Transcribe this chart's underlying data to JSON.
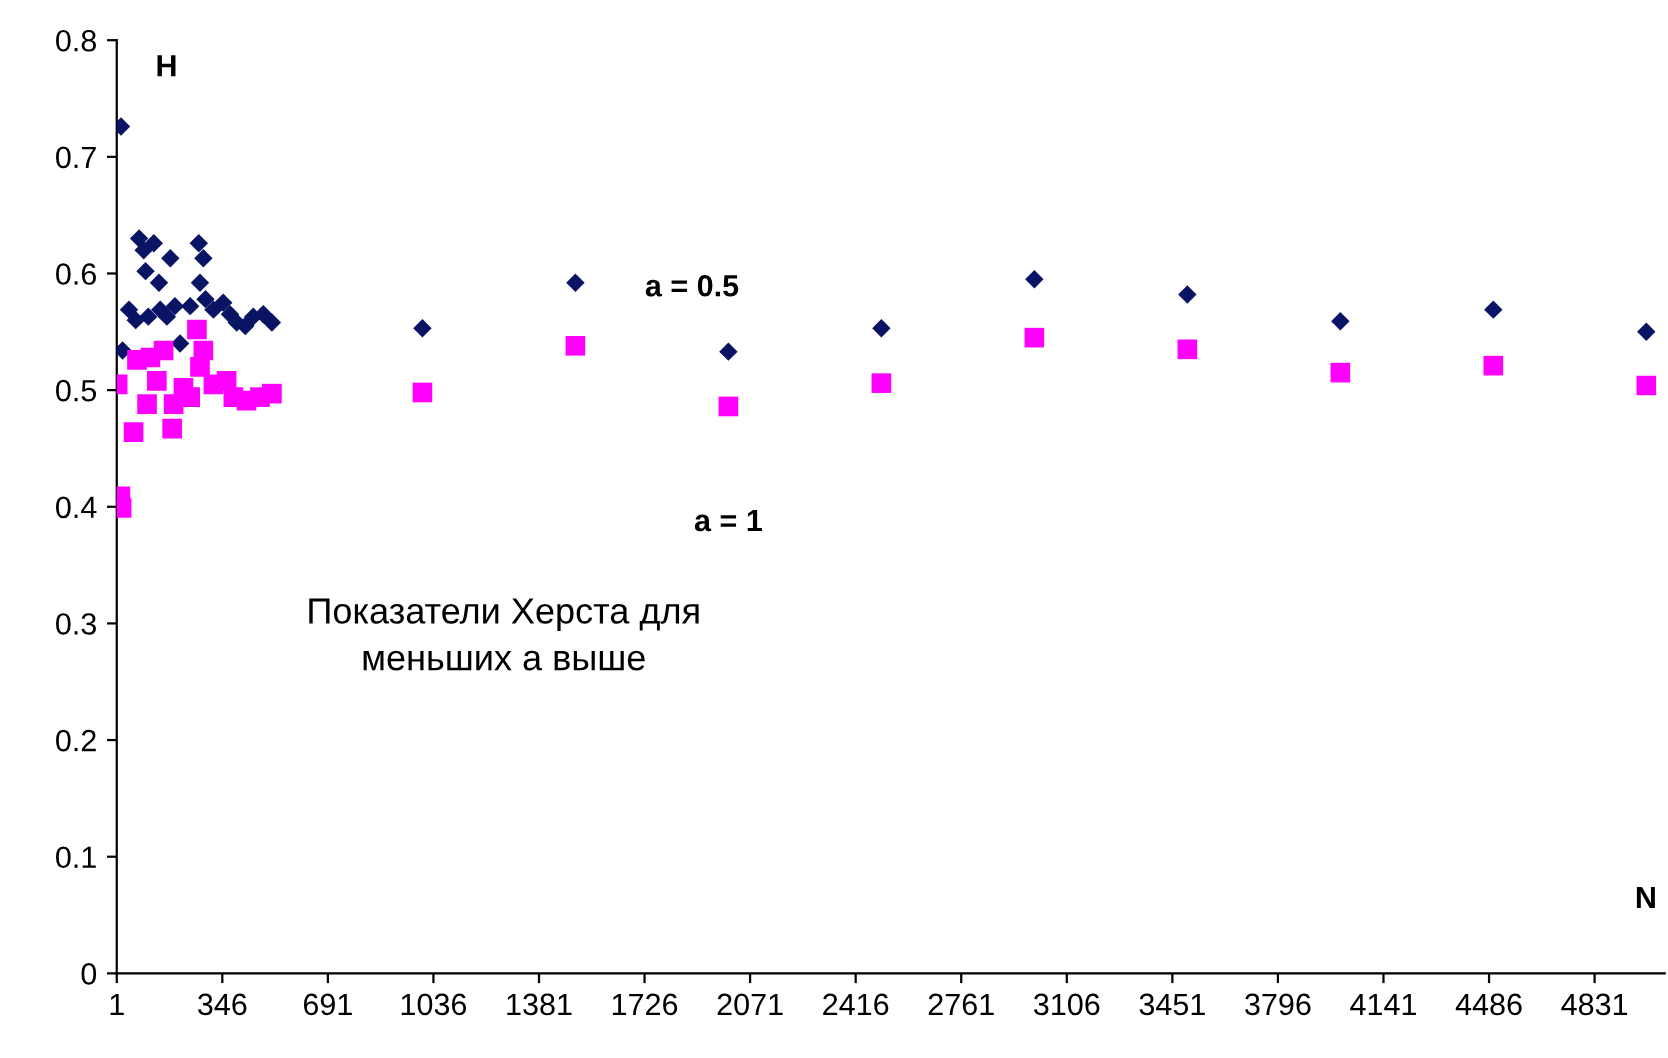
{
  "chart_data": {
    "type": "scatter",
    "xlabel": "N",
    "ylabel": "H",
    "annotations": [
      "Показатели Херста для\nменьших a выше"
    ],
    "xlim": [
      1,
      5060
    ],
    "xticks": [
      1,
      346,
      691,
      1036,
      1381,
      1726,
      2071,
      2416,
      2761,
      3106,
      3451,
      3796,
      4141,
      4486,
      4831
    ],
    "ylim": [
      0,
      0.8
    ],
    "yticks": [
      0,
      0.1,
      0.2,
      0.3,
      0.4,
      0.5,
      0.6,
      0.7,
      0.8
    ],
    "grid": false,
    "legend": false,
    "series": [
      {
        "name": "a = 0.5",
        "color": "#0a1464",
        "marker": "diamond",
        "x": [
          1000,
          1500,
          2000,
          2500,
          3000,
          3500,
          4000,
          4500,
          5000,
          15,
          20,
          41,
          74,
          89,
          95,
          122,
          143,
          139,
          104,
          176,
          191,
          208,
          241,
          269,
          284,
          273,
          291,
          317,
          349,
          371,
          393,
          421,
          447,
          480,
          508,
          63,
          165
        ],
        "values": [
          0.553,
          0.592,
          0.533,
          0.553,
          0.595,
          0.582,
          0.559,
          0.569,
          0.55,
          0.726,
          0.534,
          0.569,
          0.63,
          0.62,
          0.602,
          0.626,
          0.569,
          0.592,
          0.563,
          0.613,
          0.572,
          0.54,
          0.572,
          0.626,
          0.613,
          0.592,
          0.578,
          0.569,
          0.575,
          0.565,
          0.558,
          0.555,
          0.563,
          0.565,
          0.558,
          0.56,
          0.563
        ]
      },
      {
        "name": "a = 1",
        "color": "#ff00ff",
        "marker": "square",
        "x": [
          1000,
          1500,
          2000,
          2500,
          3000,
          3500,
          4000,
          4500,
          5000,
          4,
          13,
          17,
          56,
          67,
          111,
          154,
          100,
          187,
          182,
          219,
          263,
          284,
          317,
          360,
          382,
          425,
          469,
          508,
          241,
          132,
          273
        ],
        "values": [
          0.498,
          0.538,
          0.486,
          0.506,
          0.545,
          0.535,
          0.515,
          0.521,
          0.504,
          0.505,
          0.409,
          0.399,
          0.464,
          0.526,
          0.528,
          0.534,
          0.488,
          0.488,
          0.467,
          0.502,
          0.552,
          0.534,
          0.505,
          0.508,
          0.494,
          0.491,
          0.494,
          0.497,
          0.494,
          0.508,
          0.52
        ]
      }
    ]
  }
}
